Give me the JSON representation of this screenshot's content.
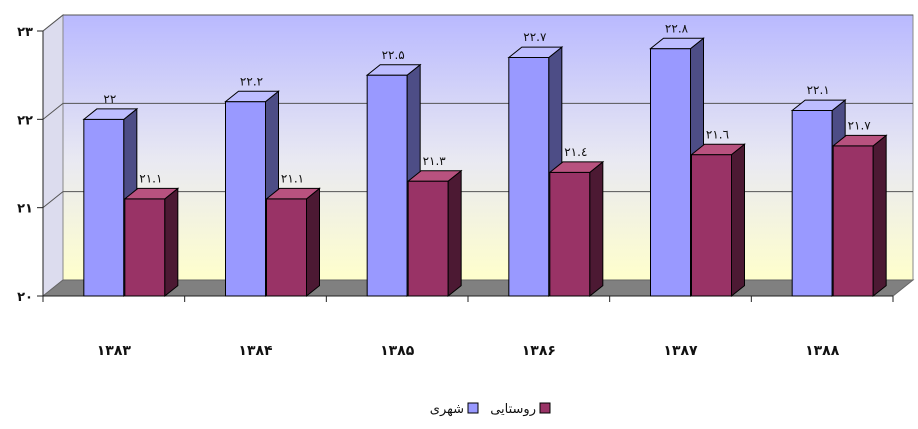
{
  "chart_data": {
    "type": "bar",
    "categories": [
      "۱۳۸۳",
      "۱۳۸۴",
      "۱۳۸۵",
      "۱۳۸۶",
      "۱۳۸۷",
      "۱۳۸۸"
    ],
    "series": [
      {
        "name": "شهری",
        "values": [
          22,
          22.2,
          22.5,
          22.7,
          22.8,
          22.1
        ],
        "labels": [
          "۲۲",
          "۲۲.۲",
          "۲۲.۵",
          "۲۲.۷",
          "۲۲.۸",
          "۲۲.۱"
        ],
        "color": "#9999ff",
        "side_color": "#4d4d86",
        "top_color": "#bdbdff"
      },
      {
        "name": "روستایی",
        "values": [
          21.1,
          21.1,
          21.3,
          21.4,
          21.6,
          21.7
        ],
        "labels": [
          "۲۱.۱",
          "۲۱.۱",
          "۲۱.۳",
          "۲۱.٤",
          "۲۱.٦",
          "۲۱.۷"
        ],
        "color": "#993366",
        "side_color": "#4c1933",
        "top_color": "#b8527f"
      }
    ],
    "ylim": [
      20,
      23
    ],
    "y_ticks": [
      20,
      21,
      22,
      23
    ],
    "y_tick_labels": [
      "۲۰",
      "۲۱",
      "۲۲",
      "۲۳"
    ],
    "grid": true,
    "legend_position": "bottom",
    "back_wall": "gradient lavender to pale yellow",
    "floor_color": "#808080"
  }
}
